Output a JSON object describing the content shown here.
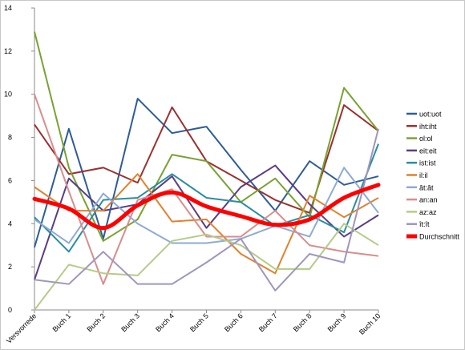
{
  "chart_data": {
    "type": "line",
    "title": "",
    "xlabel": "",
    "ylabel": "",
    "ylim": [
      0,
      14
    ],
    "yticks": [
      0,
      2,
      4,
      6,
      8,
      10,
      12,
      14
    ],
    "grid": false,
    "legend_position": "right",
    "categories": [
      "Versvorrede",
      "Buch 1",
      "Buch 2",
      "Buch 3",
      "Buch 4",
      "Buch 5",
      "Buch 6",
      "Buch 7",
      "Buch 8",
      "Buch 9",
      "Buch 10"
    ],
    "series": [
      {
        "name": "uot:uot",
        "color": "#2d5d97",
        "smooth": false,
        "values": [
          2.9,
          8.4,
          3.3,
          9.8,
          8.2,
          8.5,
          6.5,
          4.6,
          6.9,
          5.8,
          6.2
        ]
      },
      {
        "name": "iht:iht",
        "color": "#9b2f2e",
        "smooth": false,
        "values": [
          8.6,
          6.3,
          6.6,
          5.9,
          9.4,
          6.9,
          6.0,
          5.1,
          4.5,
          9.5,
          8.3
        ]
      },
      {
        "name": "ol:ol",
        "color": "#78a232",
        "smooth": false,
        "values": [
          12.9,
          6.6,
          3.2,
          4.2,
          7.2,
          6.9,
          5.0,
          6.1,
          4.3,
          10.3,
          8.3
        ]
      },
      {
        "name": "eit:eit",
        "color": "#593d85",
        "smooth": false,
        "values": [
          1.4,
          6.1,
          4.6,
          4.9,
          6.2,
          3.8,
          5.7,
          6.7,
          4.9,
          3.4,
          4.4
        ]
      },
      {
        "name": "ist:ist",
        "color": "#2a8da1",
        "smooth": false,
        "values": [
          4.3,
          2.7,
          5.1,
          5.2,
          6.3,
          5.2,
          5.0,
          3.9,
          4.4,
          3.6,
          7.7
        ]
      },
      {
        "name": "il:il",
        "color": "#e0822d",
        "smooth": false,
        "values": [
          5.7,
          4.6,
          4.6,
          6.3,
          4.1,
          4.2,
          2.6,
          1.7,
          5.3,
          4.3,
          5.2
        ]
      },
      {
        "name": "ât:ât",
        "color": "#8eaad6",
        "smooth": false,
        "values": [
          4.2,
          3.1,
          5.4,
          4.0,
          3.1,
          3.1,
          3.3,
          3.9,
          3.4,
          6.6,
          4.5
        ]
      },
      {
        "name": "an:an",
        "color": "#d88e8d",
        "smooth": false,
        "values": [
          10.0,
          5.5,
          1.2,
          5.1,
          5.6,
          3.4,
          3.4,
          4.6,
          3.0,
          2.7,
          2.5
        ]
      },
      {
        "name": "az:az",
        "color": "#b3cc87",
        "smooth": false,
        "values": [
          0.0,
          2.1,
          1.7,
          1.6,
          3.2,
          3.5,
          3.0,
          1.9,
          1.9,
          4.0,
          3.0
        ]
      },
      {
        "name": "ît:ît",
        "color": "#a095bd",
        "smooth": false,
        "values": [
          1.4,
          1.2,
          2.7,
          1.2,
          1.2,
          2.2,
          3.3,
          0.9,
          2.6,
          2.2,
          8.4
        ]
      },
      {
        "name": "Durchschnitt",
        "color": "#ff0000",
        "smooth": true,
        "values": [
          5.15,
          4.7,
          3.8,
          4.85,
          5.45,
          4.8,
          4.35,
          3.95,
          4.2,
          5.2,
          5.8
        ]
      }
    ]
  }
}
